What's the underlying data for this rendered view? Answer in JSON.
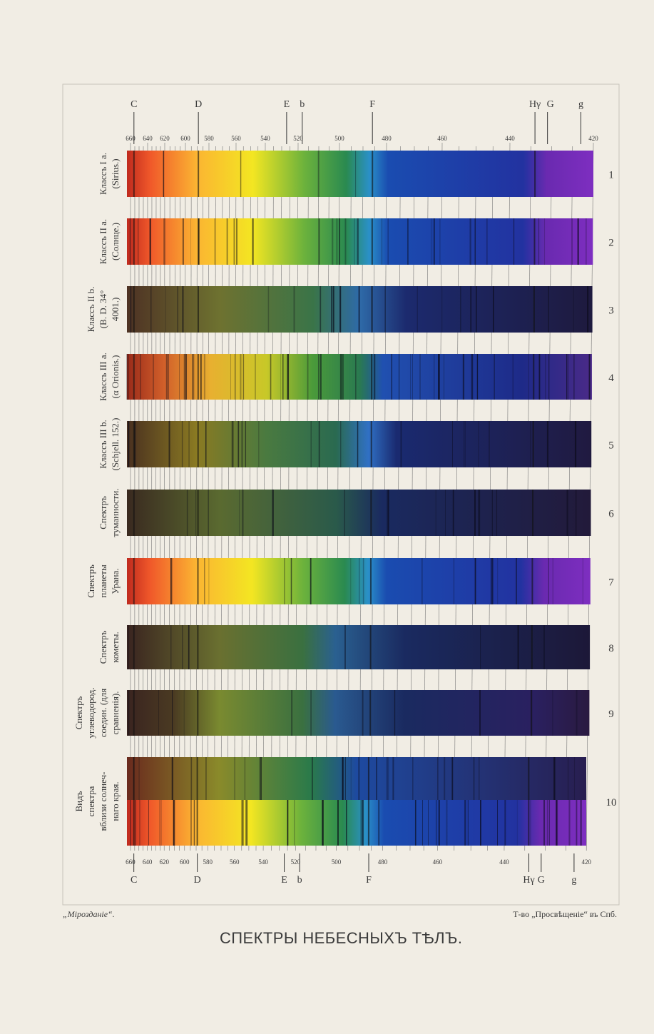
{
  "plate": {
    "fraunhofer": [
      "C",
      "D",
      "E",
      "b",
      "F",
      "Hγ",
      "G",
      "g"
    ],
    "wavelengths": [
      "660",
      "640",
      "620",
      "600",
      "580",
      "560",
      "540",
      "520",
      "500",
      "480",
      "460",
      "440",
      "420"
    ],
    "rows": [
      {
        "number": "1",
        "label": [
          "Классъ I a.",
          "(Sirius.)"
        ]
      },
      {
        "number": "2",
        "label": [
          "Классъ II a.",
          "(Солнце.)"
        ]
      },
      {
        "number": "3",
        "label": [
          "Классъ II b.",
          "(B. D. 34°",
          "4001.)"
        ]
      },
      {
        "number": "4",
        "label": [
          "Классъ III a.",
          "(α Orionis.)"
        ]
      },
      {
        "number": "5",
        "label": [
          "Классъ III b.",
          "(Schjell. 152.)"
        ]
      },
      {
        "number": "6",
        "label": [
          "Спектръ",
          "туманности."
        ]
      },
      {
        "number": "7",
        "label": [
          "Спектръ",
          "планеты",
          "Урана."
        ]
      },
      {
        "number": "8",
        "label": [
          "Спектръ",
          "кометы."
        ]
      },
      {
        "number": "9",
        "label": [
          "Спектръ",
          "углеводород.",
          "соедин. (для",
          "сравненія)."
        ]
      },
      {
        "number": "10",
        "label": [
          "Видъ",
          "спектра",
          "вблизи солнеч-",
          "наго края."
        ]
      }
    ],
    "footer_left": "„Мірозданіе“.",
    "footer_right": "Т-во „Просвѣщеніе“ въ Спб.",
    "title": "СПЕКТРЫ НЕБЕСНЫХЪ ТѢЛЪ."
  }
}
